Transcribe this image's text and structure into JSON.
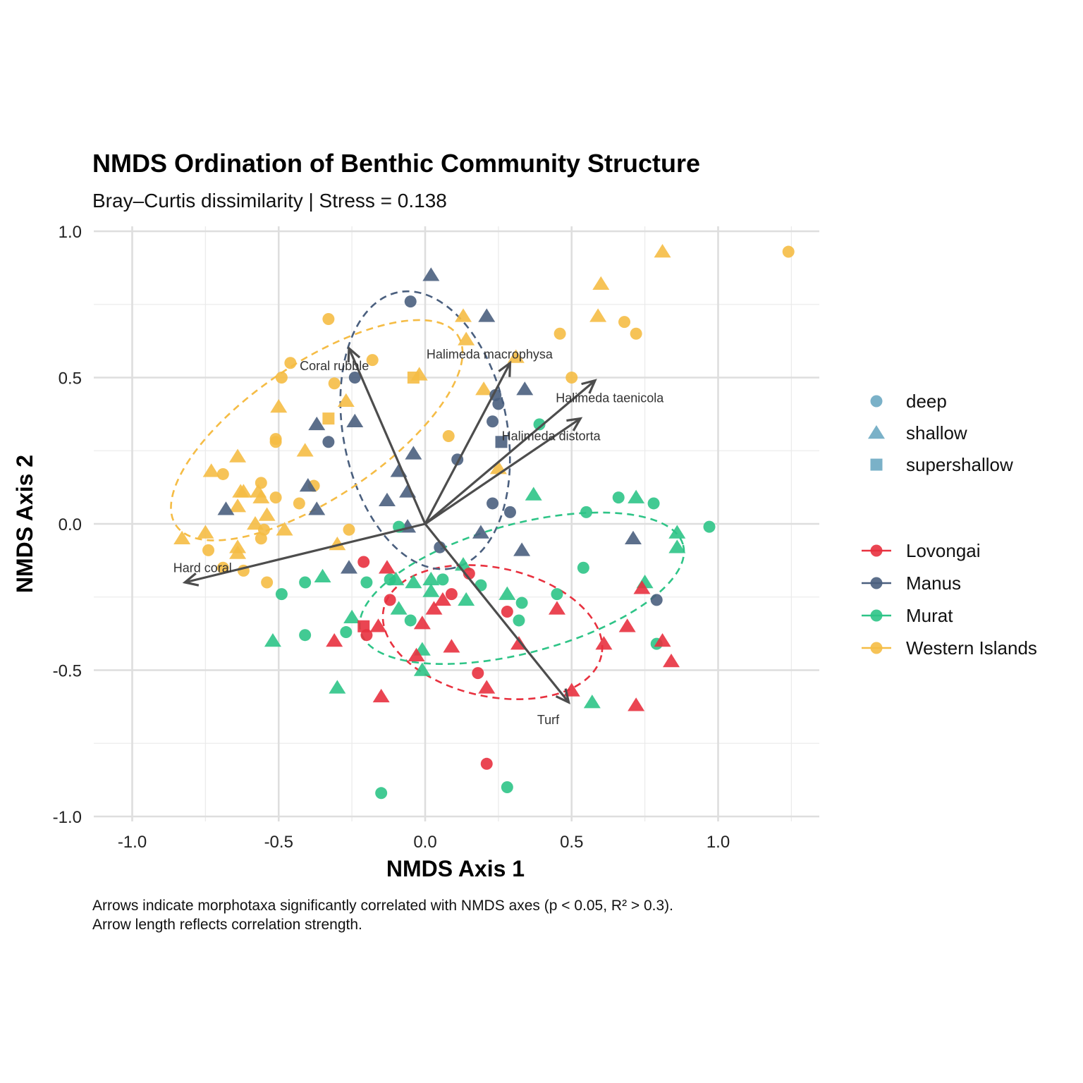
{
  "chart_data": {
    "type": "scatter",
    "title": "NMDS Ordination of Benthic Community Structure",
    "subtitle": "Bray–Curtis dissimilarity | Stress = 0.138",
    "xlabel": "NMDS Axis 1",
    "ylabel": "NMDS Axis 2",
    "caption": [
      "Arrows indicate morphotaxa significantly correlated with NMDS axes (p < 0.05, R² > 0.3).",
      "Arrow length reflects correlation strength."
    ],
    "xlim": [
      -1.12,
      1.35
    ],
    "ylim": [
      -1.0,
      1.0
    ],
    "x_ticks": [
      -1.0,
      -0.5,
      0.0,
      0.5,
      1.0
    ],
    "x_tick_labels": [
      "-1.0",
      "-0.5",
      "0.0",
      "0.5",
      "1.0"
    ],
    "y_ticks": [
      -1.0,
      -0.5,
      0.0,
      0.5,
      1.0
    ],
    "y_tick_labels": [
      "-1.0",
      "-0.5",
      "0.0",
      "0.5",
      "1.0"
    ],
    "grid": true,
    "legend_position": "right",
    "shape_legend": [
      {
        "label": "deep",
        "shape": "circle"
      },
      {
        "label": "shallow",
        "shape": "triangle"
      },
      {
        "label": "supershallow",
        "shape": "square"
      }
    ],
    "shape_legend_color": "#6BA8C2",
    "groups": [
      {
        "name": "Lovongai",
        "color": "#E8313F",
        "ellipse": {
          "cx": 0.23,
          "cy": -0.37,
          "rx": 0.38,
          "ry": 0.22,
          "angle": -12
        }
      },
      {
        "name": "Manus",
        "color": "#4A5F7E",
        "ellipse": {
          "cx": -0.0,
          "cy": 0.32,
          "rx": 0.48,
          "ry": 0.28,
          "angle": -79
        }
      },
      {
        "name": "Murat",
        "color": "#2EC487",
        "ellipse": {
          "cx": 0.33,
          "cy": -0.22,
          "rx": 0.57,
          "ry": 0.22,
          "angle": 15
        }
      },
      {
        "name": "Western Islands",
        "color": "#F5BC45",
        "ellipse": {
          "cx": -0.37,
          "cy": 0.32,
          "rx": 0.58,
          "ry": 0.23,
          "angle": 34
        }
      }
    ],
    "points": [
      {
        "g": "Western Islands",
        "s": "shallow",
        "x": 0.81,
        "y": 0.93
      },
      {
        "g": "Western Islands",
        "s": "deep",
        "x": 1.24,
        "y": 0.93
      },
      {
        "g": "Western Islands",
        "s": "shallow",
        "x": 0.6,
        "y": 0.82
      },
      {
        "g": "Western Islands",
        "s": "shallow",
        "x": 0.59,
        "y": 0.71
      },
      {
        "g": "Western Islands",
        "s": "deep",
        "x": 0.68,
        "y": 0.69
      },
      {
        "g": "Western Islands",
        "s": "deep",
        "x": 0.72,
        "y": 0.65
      },
      {
        "g": "Western Islands",
        "s": "deep",
        "x": 0.46,
        "y": 0.65
      },
      {
        "g": "Western Islands",
        "s": "shallow",
        "x": 0.13,
        "y": 0.71
      },
      {
        "g": "Western Islands",
        "s": "shallow",
        "x": 0.14,
        "y": 0.63
      },
      {
        "g": "Western Islands",
        "s": "deep",
        "x": -0.33,
        "y": 0.7
      },
      {
        "g": "Western Islands",
        "s": "deep",
        "x": -0.46,
        "y": 0.55
      },
      {
        "g": "Western Islands",
        "s": "deep",
        "x": -0.49,
        "y": 0.5
      },
      {
        "g": "Western Islands",
        "s": "deep",
        "x": -0.31,
        "y": 0.48
      },
      {
        "g": "Western Islands",
        "s": "deep",
        "x": -0.18,
        "y": 0.56
      },
      {
        "g": "Western Islands",
        "s": "shallow",
        "x": -0.02,
        "y": 0.51
      },
      {
        "g": "Western Islands",
        "s": "supershallow",
        "x": -0.04,
        "y": 0.5
      },
      {
        "g": "Western Islands",
        "s": "shallow",
        "x": 0.31,
        "y": 0.57
      },
      {
        "g": "Western Islands",
        "s": "deep",
        "x": 0.5,
        "y": 0.5
      },
      {
        "g": "Western Islands",
        "s": "shallow",
        "x": 0.2,
        "y": 0.46
      },
      {
        "g": "Western Islands",
        "s": "shallow",
        "x": -0.27,
        "y": 0.42
      },
      {
        "g": "Western Islands",
        "s": "shallow",
        "x": -0.5,
        "y": 0.4
      },
      {
        "g": "Western Islands",
        "s": "supershallow",
        "x": -0.33,
        "y": 0.36
      },
      {
        "g": "Western Islands",
        "s": "deep",
        "x": 0.08,
        "y": 0.3
      },
      {
        "g": "Western Islands",
        "s": "deep",
        "x": -0.51,
        "y": 0.29
      },
      {
        "g": "Western Islands",
        "s": "deep",
        "x": -0.51,
        "y": 0.28
      },
      {
        "g": "Western Islands",
        "s": "shallow",
        "x": -0.41,
        "y": 0.25
      },
      {
        "g": "Western Islands",
        "s": "shallow",
        "x": -0.64,
        "y": 0.23
      },
      {
        "g": "Western Islands",
        "s": "shallow",
        "x": 0.25,
        "y": 0.19
      },
      {
        "g": "Western Islands",
        "s": "shallow",
        "x": -0.73,
        "y": 0.18
      },
      {
        "g": "Western Islands",
        "s": "deep",
        "x": -0.69,
        "y": 0.17
      },
      {
        "g": "Western Islands",
        "s": "deep",
        "x": -0.56,
        "y": 0.14
      },
      {
        "g": "Western Islands",
        "s": "deep",
        "x": -0.38,
        "y": 0.13
      },
      {
        "g": "Western Islands",
        "s": "shallow",
        "x": -0.63,
        "y": 0.11
      },
      {
        "g": "Western Islands",
        "s": "shallow",
        "x": -0.62,
        "y": 0.11
      },
      {
        "g": "Western Islands",
        "s": "shallow",
        "x": -0.57,
        "y": 0.11
      },
      {
        "g": "Western Islands",
        "s": "deep",
        "x": -0.51,
        "y": 0.09
      },
      {
        "g": "Western Islands",
        "s": "shallow",
        "x": -0.56,
        "y": 0.09
      },
      {
        "g": "Western Islands",
        "s": "deep",
        "x": -0.43,
        "y": 0.07
      },
      {
        "g": "Western Islands",
        "s": "shallow",
        "x": -0.64,
        "y": 0.06
      },
      {
        "g": "Western Islands",
        "s": "shallow",
        "x": -0.54,
        "y": 0.03
      },
      {
        "g": "Western Islands",
        "s": "shallow",
        "x": -0.58,
        "y": 0.0
      },
      {
        "g": "Western Islands",
        "s": "deep",
        "x": -0.55,
        "y": -0.02
      },
      {
        "g": "Western Islands",
        "s": "shallow",
        "x": -0.48,
        "y": -0.02
      },
      {
        "g": "Western Islands",
        "s": "deep",
        "x": -0.26,
        "y": -0.02
      },
      {
        "g": "Western Islands",
        "s": "shallow",
        "x": -0.83,
        "y": -0.05
      },
      {
        "g": "Western Islands",
        "s": "shallow",
        "x": -0.75,
        "y": -0.03
      },
      {
        "g": "Western Islands",
        "s": "deep",
        "x": -0.56,
        "y": -0.05
      },
      {
        "g": "Western Islands",
        "s": "shallow",
        "x": -0.3,
        "y": -0.07
      },
      {
        "g": "Western Islands",
        "s": "deep",
        "x": -0.74,
        "y": -0.09
      },
      {
        "g": "Western Islands",
        "s": "shallow",
        "x": -0.64,
        "y": -0.08
      },
      {
        "g": "Western Islands",
        "s": "shallow",
        "x": -0.64,
        "y": -0.1
      },
      {
        "g": "Western Islands",
        "s": "deep",
        "x": -0.69,
        "y": -0.15
      },
      {
        "g": "Western Islands",
        "s": "deep",
        "x": -0.62,
        "y": -0.16
      },
      {
        "g": "Western Islands",
        "s": "deep",
        "x": -0.54,
        "y": -0.2
      },
      {
        "g": "Manus",
        "s": "shallow",
        "x": 0.02,
        "y": 0.85
      },
      {
        "g": "Manus",
        "s": "deep",
        "x": -0.05,
        "y": 0.76
      },
      {
        "g": "Manus",
        "s": "shallow",
        "x": 0.21,
        "y": 0.71
      },
      {
        "g": "Manus",
        "s": "deep",
        "x": -0.24,
        "y": 0.5
      },
      {
        "g": "Manus",
        "s": "shallow",
        "x": 0.34,
        "y": 0.46
      },
      {
        "g": "Manus",
        "s": "deep",
        "x": 0.24,
        "y": 0.44
      },
      {
        "g": "Manus",
        "s": "deep",
        "x": 0.25,
        "y": 0.41
      },
      {
        "g": "Manus",
        "s": "deep",
        "x": 0.23,
        "y": 0.35
      },
      {
        "g": "Manus",
        "s": "shallow",
        "x": -0.37,
        "y": 0.34
      },
      {
        "g": "Manus",
        "s": "shallow",
        "x": -0.24,
        "y": 0.35
      },
      {
        "g": "Manus",
        "s": "supershallow",
        "x": 0.26,
        "y": 0.28
      },
      {
        "g": "Manus",
        "s": "deep",
        "x": -0.33,
        "y": 0.28
      },
      {
        "g": "Manus",
        "s": "shallow",
        "x": -0.04,
        "y": 0.24
      },
      {
        "g": "Manus",
        "s": "deep",
        "x": 0.11,
        "y": 0.22
      },
      {
        "g": "Manus",
        "s": "shallow",
        "x": -0.09,
        "y": 0.18
      },
      {
        "g": "Manus",
        "s": "shallow",
        "x": -0.4,
        "y": 0.13
      },
      {
        "g": "Manus",
        "s": "shallow",
        "x": -0.06,
        "y": 0.11
      },
      {
        "g": "Manus",
        "s": "shallow",
        "x": -0.13,
        "y": 0.08
      },
      {
        "g": "Manus",
        "s": "deep",
        "x": 0.23,
        "y": 0.07
      },
      {
        "g": "Manus",
        "s": "deep",
        "x": 0.29,
        "y": 0.04
      },
      {
        "g": "Manus",
        "s": "shallow",
        "x": -0.68,
        "y": 0.05
      },
      {
        "g": "Manus",
        "s": "shallow",
        "x": -0.37,
        "y": 0.05
      },
      {
        "g": "Manus",
        "s": "shallow",
        "x": -0.06,
        "y": -0.01
      },
      {
        "g": "Manus",
        "s": "shallow",
        "x": 0.19,
        "y": -0.03
      },
      {
        "g": "Manus",
        "s": "shallow",
        "x": 0.71,
        "y": -0.05
      },
      {
        "g": "Manus",
        "s": "deep",
        "x": 0.05,
        "y": -0.08
      },
      {
        "g": "Manus",
        "s": "shallow",
        "x": 0.33,
        "y": -0.09
      },
      {
        "g": "Manus",
        "s": "shallow",
        "x": -0.26,
        "y": -0.15
      },
      {
        "g": "Manus",
        "s": "deep",
        "x": 0.79,
        "y": -0.26
      },
      {
        "g": "Murat",
        "s": "deep",
        "x": 0.97,
        "y": -0.01
      },
      {
        "g": "Murat",
        "s": "shallow",
        "x": 0.86,
        "y": -0.03
      },
      {
        "g": "Murat",
        "s": "shallow",
        "x": 0.86,
        "y": -0.08
      },
      {
        "g": "Murat",
        "s": "deep",
        "x": 0.39,
        "y": 0.34
      },
      {
        "g": "Murat",
        "s": "shallow",
        "x": 0.37,
        "y": 0.1
      },
      {
        "g": "Murat",
        "s": "deep",
        "x": 0.66,
        "y": 0.09
      },
      {
        "g": "Murat",
        "s": "shallow",
        "x": 0.72,
        "y": 0.09
      },
      {
        "g": "Murat",
        "s": "deep",
        "x": 0.78,
        "y": 0.07
      },
      {
        "g": "Murat",
        "s": "deep",
        "x": 0.55,
        "y": 0.04
      },
      {
        "g": "Murat",
        "s": "deep",
        "x": -0.09,
        "y": -0.01
      },
      {
        "g": "Murat",
        "s": "deep",
        "x": 0.54,
        "y": -0.15
      },
      {
        "g": "Murat",
        "s": "shallow",
        "x": 0.13,
        "y": -0.14
      },
      {
        "g": "Murat",
        "s": "shallow",
        "x": -0.35,
        "y": -0.18
      },
      {
        "g": "Murat",
        "s": "deep",
        "x": -0.41,
        "y": -0.2
      },
      {
        "g": "Murat",
        "s": "deep",
        "x": -0.2,
        "y": -0.2
      },
      {
        "g": "Murat",
        "s": "deep",
        "x": -0.12,
        "y": -0.19
      },
      {
        "g": "Murat",
        "s": "shallow",
        "x": -0.1,
        "y": -0.19
      },
      {
        "g": "Murat",
        "s": "shallow",
        "x": -0.04,
        "y": -0.2
      },
      {
        "g": "Murat",
        "s": "shallow",
        "x": 0.02,
        "y": -0.19
      },
      {
        "g": "Murat",
        "s": "deep",
        "x": 0.06,
        "y": -0.19
      },
      {
        "g": "Murat",
        "s": "deep",
        "x": 0.19,
        "y": -0.21
      },
      {
        "g": "Murat",
        "s": "shallow",
        "x": 0.75,
        "y": -0.2
      },
      {
        "g": "Murat",
        "s": "shallow",
        "x": 0.02,
        "y": -0.23
      },
      {
        "g": "Murat",
        "s": "shallow",
        "x": 0.28,
        "y": -0.24
      },
      {
        "g": "Murat",
        "s": "deep",
        "x": -0.49,
        "y": -0.24
      },
      {
        "g": "Murat",
        "s": "deep",
        "x": 0.45,
        "y": -0.24
      },
      {
        "g": "Murat",
        "s": "shallow",
        "x": 0.14,
        "y": -0.26
      },
      {
        "g": "Murat",
        "s": "deep",
        "x": 0.33,
        "y": -0.27
      },
      {
        "g": "Murat",
        "s": "shallow",
        "x": -0.09,
        "y": -0.29
      },
      {
        "g": "Murat",
        "s": "deep",
        "x": 0.32,
        "y": -0.33
      },
      {
        "g": "Murat",
        "s": "deep",
        "x": -0.05,
        "y": -0.33
      },
      {
        "g": "Murat",
        "s": "shallow",
        "x": -0.25,
        "y": -0.32
      },
      {
        "g": "Murat",
        "s": "deep",
        "x": -0.27,
        "y": -0.37
      },
      {
        "g": "Murat",
        "s": "deep",
        "x": -0.41,
        "y": -0.38
      },
      {
        "g": "Murat",
        "s": "shallow",
        "x": -0.52,
        "y": -0.4
      },
      {
        "g": "Murat",
        "s": "shallow",
        "x": -0.01,
        "y": -0.43
      },
      {
        "g": "Murat",
        "s": "deep",
        "x": 0.79,
        "y": -0.41
      },
      {
        "g": "Murat",
        "s": "shallow",
        "x": -0.01,
        "y": -0.5
      },
      {
        "g": "Murat",
        "s": "shallow",
        "x": -0.3,
        "y": -0.56
      },
      {
        "g": "Murat",
        "s": "shallow",
        "x": 0.57,
        "y": -0.61
      },
      {
        "g": "Murat",
        "s": "deep",
        "x": -0.15,
        "y": -0.92
      },
      {
        "g": "Murat",
        "s": "deep",
        "x": 0.28,
        "y": -0.9
      },
      {
        "g": "Lovongai",
        "s": "deep",
        "x": -0.21,
        "y": -0.13
      },
      {
        "g": "Lovongai",
        "s": "shallow",
        "x": -0.13,
        "y": -0.15
      },
      {
        "g": "Lovongai",
        "s": "deep",
        "x": 0.15,
        "y": -0.17
      },
      {
        "g": "Lovongai",
        "s": "shallow",
        "x": 0.74,
        "y": -0.22
      },
      {
        "g": "Lovongai",
        "s": "deep",
        "x": 0.09,
        "y": -0.24
      },
      {
        "g": "Lovongai",
        "s": "deep",
        "x": -0.12,
        "y": -0.26
      },
      {
        "g": "Lovongai",
        "s": "shallow",
        "x": 0.06,
        "y": -0.26
      },
      {
        "g": "Lovongai",
        "s": "shallow",
        "x": 0.03,
        "y": -0.29
      },
      {
        "g": "Lovongai",
        "s": "deep",
        "x": 0.28,
        "y": -0.3
      },
      {
        "g": "Lovongai",
        "s": "shallow",
        "x": 0.45,
        "y": -0.29
      },
      {
        "g": "Lovongai",
        "s": "shallow",
        "x": -0.01,
        "y": -0.34
      },
      {
        "g": "Lovongai",
        "s": "shallow",
        "x": 0.69,
        "y": -0.35
      },
      {
        "g": "Lovongai",
        "s": "supershallow",
        "x": -0.21,
        "y": -0.35
      },
      {
        "g": "Lovongai",
        "s": "shallow",
        "x": -0.16,
        "y": -0.35
      },
      {
        "g": "Lovongai",
        "s": "deep",
        "x": -0.2,
        "y": -0.38
      },
      {
        "g": "Lovongai",
        "s": "shallow",
        "x": -0.31,
        "y": -0.4
      },
      {
        "g": "Lovongai",
        "s": "shallow",
        "x": 0.81,
        "y": -0.4
      },
      {
        "g": "Lovongai",
        "s": "shallow",
        "x": 0.61,
        "y": -0.41
      },
      {
        "g": "Lovongai",
        "s": "shallow",
        "x": 0.09,
        "y": -0.42
      },
      {
        "g": "Lovongai",
        "s": "shallow",
        "x": 0.32,
        "y": -0.41
      },
      {
        "g": "Lovongai",
        "s": "shallow",
        "x": -0.03,
        "y": -0.45
      },
      {
        "g": "Lovongai",
        "s": "shallow",
        "x": 0.84,
        "y": -0.47
      },
      {
        "g": "Lovongai",
        "s": "deep",
        "x": 0.18,
        "y": -0.51
      },
      {
        "g": "Lovongai",
        "s": "shallow",
        "x": 0.21,
        "y": -0.56
      },
      {
        "g": "Lovongai",
        "s": "shallow",
        "x": 0.5,
        "y": -0.57
      },
      {
        "g": "Lovongai",
        "s": "shallow",
        "x": -0.15,
        "y": -0.59
      },
      {
        "g": "Lovongai",
        "s": "shallow",
        "x": 0.72,
        "y": -0.62
      },
      {
        "g": "Lovongai",
        "s": "deep",
        "x": 0.21,
        "y": -0.82
      }
    ],
    "vectors": [
      {
        "label": "Coral rubble",
        "x": -0.26,
        "y": 0.6,
        "lx": -0.31,
        "ly": 0.54
      },
      {
        "label": "Halimeda macrophysa",
        "x": 0.29,
        "y": 0.55,
        "lx": 0.22,
        "ly": 0.58
      },
      {
        "label": "Halimeda taenicola",
        "x": 0.58,
        "y": 0.49,
        "lx": 0.63,
        "ly": 0.43
      },
      {
        "label": "Halimeda distorta",
        "x": 0.53,
        "y": 0.36,
        "lx": 0.43,
        "ly": 0.3
      },
      {
        "label": "Hard coral",
        "x": -0.82,
        "y": -0.2,
        "lx": -0.76,
        "ly": -0.15
      },
      {
        "label": "Turf",
        "x": 0.49,
        "y": -0.61,
        "lx": 0.42,
        "ly": -0.67
      }
    ]
  }
}
